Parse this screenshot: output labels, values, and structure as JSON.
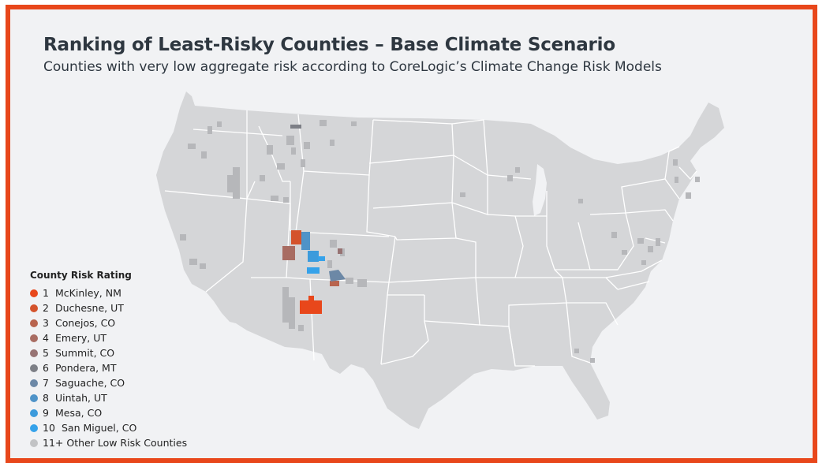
{
  "header": {
    "title": "Ranking of Least-Risky Counties – Base Climate Scenario",
    "subtitle": "Counties with very low aggregate risk according to CoreLogic’s Climate Change Risk Models"
  },
  "legend": {
    "title": "County Risk Rating",
    "items": [
      {
        "rank": "1",
        "label": "McKinley, NM",
        "color": "#e8471b"
      },
      {
        "rank": "2",
        "label": "Duchesne, UT",
        "color": "#d4532c"
      },
      {
        "rank": "3",
        "label": "Conejos, CO",
        "color": "#b8644e"
      },
      {
        "rank": "4",
        "label": "Emery, UT",
        "color": "#a86c62"
      },
      {
        "rank": "5",
        "label": "Summit, CO",
        "color": "#977373"
      },
      {
        "rank": "6",
        "label": "Pondera, MT",
        "color": "#7d7f86"
      },
      {
        "rank": "7",
        "label": "Saguache, CO",
        "color": "#6c88a6"
      },
      {
        "rank": "8",
        "label": "Uintah, UT",
        "color": "#4f93c8"
      },
      {
        "rank": "9",
        "label": "Mesa, CO",
        "color": "#3c9bdc"
      },
      {
        "rank": "10",
        "label": "San Miguel, CO",
        "color": "#35a2ea"
      },
      {
        "rank": "",
        "label": "11+ Other Low Risk Counties",
        "color": "#c2c3c5"
      }
    ]
  },
  "colors": {
    "border": "#e8471b",
    "background": "#f1f2f4",
    "land": "#d5d6d8",
    "state_lines": "#ffffff",
    "other_low_risk": "#b6b7ba"
  }
}
